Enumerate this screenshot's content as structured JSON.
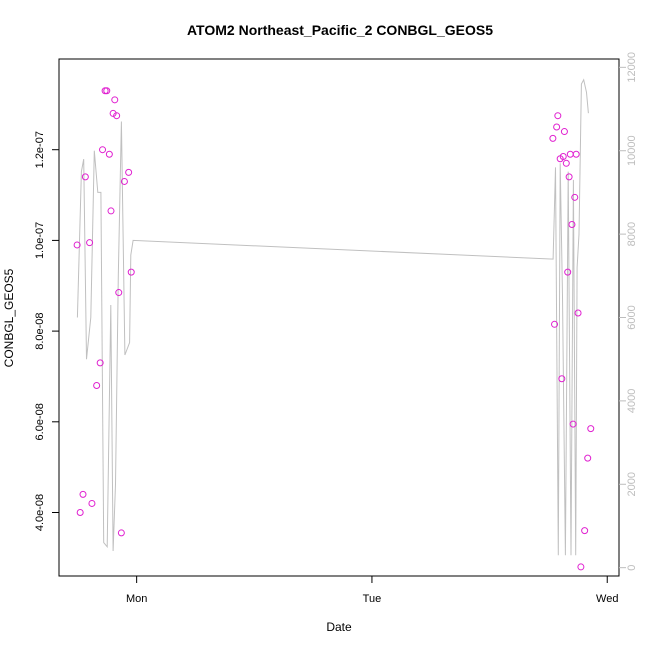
{
  "chart_data": {
    "type": "scatter",
    "title": "ATOM2 Northeast_Pacific_2 CONBGL_GEOS5",
    "xlabel": "Date",
    "ylabel": "CONBGL_GEOS5",
    "x_unit": "days since Monday 00:00",
    "xlim": [
      -0.33,
      2.05
    ],
    "ylim": [
      2.6e-08,
      1.4e-07
    ],
    "y2lim": [
      -200,
      12200
    ],
    "x_ticks": [
      {
        "value": 0,
        "label": "Mon"
      },
      {
        "value": 1,
        "label": "Tue"
      },
      {
        "value": 2,
        "label": "Wed"
      }
    ],
    "y_ticks": [
      {
        "value": 4e-08,
        "label": "4.0e-08"
      },
      {
        "value": 6e-08,
        "label": "6.0e-08"
      },
      {
        "value": 8e-08,
        "label": "8.0e-08"
      },
      {
        "value": 1e-07,
        "label": "1.0e-07"
      },
      {
        "value": 1.2e-07,
        "label": "1.2e-07"
      }
    ],
    "y2_ticks": [
      {
        "value": 0,
        "label": "0"
      },
      {
        "value": 2000,
        "label": "2000"
      },
      {
        "value": 4000,
        "label": "4000"
      },
      {
        "value": 6000,
        "label": "6000"
      },
      {
        "value": 8000,
        "label": "8000"
      },
      {
        "value": 10000,
        "label": "10000"
      },
      {
        "value": 12000,
        "label": "12000"
      }
    ],
    "series": [
      {
        "type": "scatter",
        "color": "#e020d0",
        "points": [
          [
            -0.253,
            9.9e-08
          ],
          [
            -0.24,
            4e-08
          ],
          [
            -0.228,
            4.4e-08
          ],
          [
            -0.218,
            1.14e-07
          ],
          [
            -0.2,
            9.95e-08
          ],
          [
            -0.19,
            4.2e-08
          ],
          [
            -0.17,
            6.8e-08
          ],
          [
            -0.155,
            7.3e-08
          ],
          [
            -0.145,
            1.2e-07
          ],
          [
            -0.134,
            1.33e-07
          ],
          [
            -0.127,
            1.33e-07
          ],
          [
            -0.116,
            1.19e-07
          ],
          [
            -0.109,
            1.065e-07
          ],
          [
            -0.1,
            1.28e-07
          ],
          [
            -0.093,
            1.31e-07
          ],
          [
            -0.085,
            1.275e-07
          ],
          [
            -0.076,
            8.85e-08
          ],
          [
            -0.065,
            3.55e-08
          ],
          [
            -0.052,
            1.13e-07
          ],
          [
            -0.034,
            1.15e-07
          ],
          [
            -0.023,
            9.3e-08
          ],
          [
            1.769,
            1.225e-07
          ],
          [
            1.776,
            8.15e-08
          ],
          [
            1.785,
            1.25e-07
          ],
          [
            1.79,
            1.275e-07
          ],
          [
            1.8,
            1.18e-07
          ],
          [
            1.807,
            6.95e-08
          ],
          [
            1.813,
            1.185e-07
          ],
          [
            1.818,
            1.24e-07
          ],
          [
            1.826,
            1.17e-07
          ],
          [
            1.832,
            9.3e-08
          ],
          [
            1.838,
            1.14e-07
          ],
          [
            1.843,
            1.19e-07
          ],
          [
            1.85,
            1.035e-07
          ],
          [
            1.855,
            5.95e-08
          ],
          [
            1.862,
            1.095e-07
          ],
          [
            1.868,
            1.19e-07
          ],
          [
            1.876,
            8.4e-08
          ],
          [
            1.888,
            2.8e-08
          ],
          [
            1.904,
            3.6e-08
          ],
          [
            1.917,
            5.2e-08
          ],
          [
            1.93,
            5.85e-08
          ]
        ]
      },
      {
        "type": "line",
        "color": "#c0c0c0",
        "axis": "right",
        "points": [
          [
            -0.252,
            6000
          ],
          [
            -0.235,
            9500
          ],
          [
            -0.225,
            9800
          ],
          [
            -0.213,
            5000
          ],
          [
            -0.195,
            6000
          ],
          [
            -0.18,
            10000
          ],
          [
            -0.165,
            9000
          ],
          [
            -0.152,
            9000
          ],
          [
            -0.14,
            600
          ],
          [
            -0.125,
            500
          ],
          [
            -0.11,
            6300
          ],
          [
            -0.1,
            400
          ],
          [
            -0.09,
            2000
          ],
          [
            -0.078,
            7000
          ],
          [
            -0.065,
            10700
          ],
          [
            -0.05,
            5100
          ],
          [
            -0.03,
            5400
          ],
          [
            -0.025,
            7500
          ],
          [
            -0.015,
            7850
          ],
          [
            1.77,
            7400
          ],
          [
            1.78,
            9600
          ],
          [
            1.792,
            300
          ],
          [
            1.8,
            9700
          ],
          [
            1.81,
            6500
          ],
          [
            1.822,
            300
          ],
          [
            1.834,
            9500
          ],
          [
            1.846,
            300
          ],
          [
            1.856,
            9300
          ],
          [
            1.866,
            300
          ],
          [
            1.872,
            7200
          ],
          [
            1.88,
            8000
          ],
          [
            1.89,
            11600
          ],
          [
            1.9,
            11700
          ],
          [
            1.912,
            11400
          ],
          [
            1.92,
            10900
          ]
        ]
      }
    ]
  }
}
